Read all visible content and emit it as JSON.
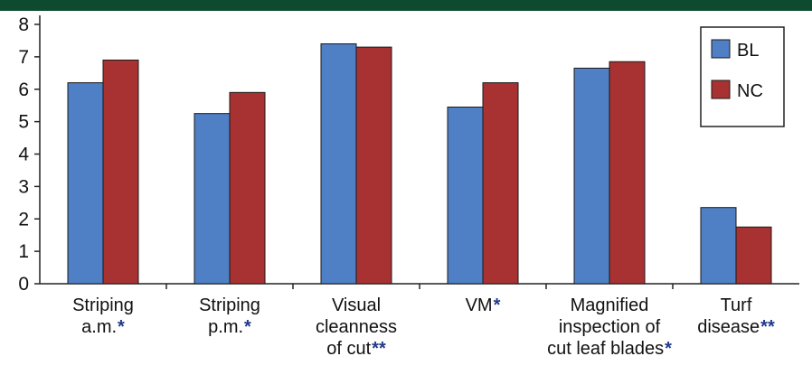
{
  "colors": {
    "top_bar": "#0d4a2f",
    "series_BL": "#4f7fc4",
    "series_NC": "#a83232",
    "axis": "#222222",
    "star": "#1f3a8a"
  },
  "chart_data": {
    "type": "bar",
    "categories": [
      {
        "lines": [
          "Striping",
          "a.m."
        ],
        "stars": "*"
      },
      {
        "lines": [
          "Striping",
          "p.m."
        ],
        "stars": "*"
      },
      {
        "lines": [
          "Visual",
          "cleanness",
          "of cut"
        ],
        "stars": "**"
      },
      {
        "lines": [
          "VM"
        ],
        "stars": "*"
      },
      {
        "lines": [
          "Magnified",
          "inspection of",
          "cut leaf blades"
        ],
        "stars": "*"
      },
      {
        "lines": [
          "Turf",
          "disease"
        ],
        "stars": "**"
      }
    ],
    "series": [
      {
        "name": "BL",
        "values": [
          6.2,
          5.25,
          7.4,
          5.45,
          6.65,
          2.35
        ]
      },
      {
        "name": "NC",
        "values": [
          6.9,
          5.9,
          7.3,
          6.2,
          6.85,
          1.75
        ]
      }
    ],
    "ylim": [
      0,
      8
    ],
    "yticks": [
      "0",
      "1",
      "2",
      "3",
      "4",
      "5",
      "6",
      "7",
      "8"
    ],
    "legend_position": "top-right"
  }
}
